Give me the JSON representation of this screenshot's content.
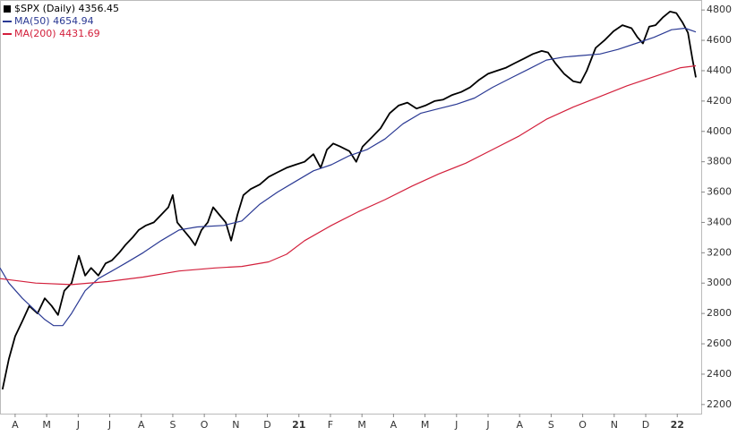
{
  "chart_data": {
    "type": "line",
    "xticks": [
      {
        "value": 0,
        "label": "A"
      },
      {
        "value": 1,
        "label": "M"
      },
      {
        "value": 2,
        "label": "J"
      },
      {
        "value": 3,
        "label": "J"
      },
      {
        "value": 4,
        "label": "A"
      },
      {
        "value": 5,
        "label": "S"
      },
      {
        "value": 6,
        "label": "O"
      },
      {
        "value": 7,
        "label": "N"
      },
      {
        "value": 8,
        "label": "D"
      },
      {
        "value": 9,
        "label": "21"
      },
      {
        "value": 10,
        "label": "F"
      },
      {
        "value": 11,
        "label": "M"
      },
      {
        "value": 12,
        "label": "A"
      },
      {
        "value": 13,
        "label": "M"
      },
      {
        "value": 14,
        "label": "J"
      },
      {
        "value": 15,
        "label": "J"
      },
      {
        "value": 16,
        "label": "A"
      },
      {
        "value": 17,
        "label": "S"
      },
      {
        "value": 18,
        "label": "O"
      },
      {
        "value": 19,
        "label": "N"
      },
      {
        "value": 20,
        "label": "D"
      },
      {
        "value": 21,
        "label": "22"
      }
    ],
    "xlim": [
      -0.48,
      21.76
    ],
    "ylim": [
      2140,
      4860
    ],
    "yticks": [
      2200,
      2400,
      2600,
      2800,
      3000,
      3200,
      3400,
      3600,
      3800,
      4000,
      4200,
      4400,
      4600,
      4800
    ],
    "grid": false,
    "legend": "top-left",
    "series": [
      {
        "name": "$SPX (Daily) 4356.45",
        "color": "#000000",
        "x": [
          -0.4,
          -0.2,
          0,
          0.23,
          0.45,
          0.71,
          0.94,
          1.16,
          1.36,
          1.56,
          1.79,
          2.02,
          2.22,
          2.41,
          2.64,
          2.87,
          3.07,
          3.3,
          3.49,
          3.72,
          3.92,
          4.15,
          4.4,
          4.63,
          4.86,
          5,
          5.14,
          5.34,
          5.54,
          5.71,
          5.91,
          6.11,
          6.28,
          6.48,
          6.68,
          6.85,
          7.05,
          7.24,
          7.47,
          7.76,
          8.04,
          8.32,
          8.61,
          8.89,
          9.18,
          9.46,
          9.69,
          9.89,
          10.09,
          10.31,
          10.6,
          10.82,
          11.02,
          11.31,
          11.59,
          11.88,
          12.16,
          12.44,
          12.73,
          13.01,
          13.3,
          13.58,
          13.86,
          14.15,
          14.43,
          14.72,
          15,
          15.28,
          15.57,
          15.85,
          16.14,
          16.42,
          16.7,
          16.9,
          17.13,
          17.41,
          17.7,
          17.93,
          18.13,
          18.41,
          18.69,
          18.98,
          19.26,
          19.55,
          19.74,
          19.91,
          20.11,
          20.31,
          20.54,
          20.77,
          20.97,
          21.16,
          21.34,
          21.48,
          21.59
        ],
        "values": [
          2300,
          2500,
          2650,
          2750,
          2850,
          2800,
          2900,
          2850,
          2790,
          2950,
          3000,
          3180,
          3050,
          3100,
          3050,
          3130,
          3150,
          3200,
          3250,
          3300,
          3350,
          3380,
          3400,
          3450,
          3500,
          3580,
          3400,
          3350,
          3300,
          3250,
          3350,
          3400,
          3500,
          3450,
          3400,
          3280,
          3450,
          3580,
          3620,
          3650,
          3700,
          3730,
          3760,
          3780,
          3800,
          3850,
          3760,
          3880,
          3920,
          3900,
          3870,
          3800,
          3900,
          3960,
          4020,
          4120,
          4170,
          4190,
          4150,
          4170,
          4200,
          4210,
          4240,
          4260,
          4290,
          4340,
          4380,
          4400,
          4420,
          4450,
          4480,
          4510,
          4530,
          4520,
          4450,
          4380,
          4330,
          4320,
          4400,
          4550,
          4600,
          4660,
          4700,
          4680,
          4620,
          4580,
          4690,
          4700,
          4750,
          4790,
          4780,
          4720,
          4650,
          4480,
          4356
        ]
      },
      {
        "name": "MA(50) 4654.94",
        "color": "#2b3a94",
        "x": [
          -0.48,
          -0.2,
          0.23,
          0.94,
          1.22,
          1.51,
          1.79,
          2.22,
          2.64,
          3.07,
          3.49,
          4.06,
          4.63,
          5.2,
          5.77,
          6.62,
          7.19,
          7.76,
          8.32,
          8.89,
          9.46,
          10.03,
          10.6,
          11.16,
          11.73,
          12.3,
          12.87,
          13.44,
          14.01,
          14.57,
          15.14,
          15.71,
          16.28,
          16.85,
          17.41,
          17.98,
          18.55,
          19.12,
          19.69,
          20.26,
          20.82,
          21.25,
          21.59
        ],
        "values": [
          3100,
          3000,
          2900,
          2760,
          2720,
          2720,
          2800,
          2950,
          3030,
          3080,
          3130,
          3200,
          3280,
          3350,
          3370,
          3380,
          3410,
          3520,
          3600,
          3670,
          3740,
          3780,
          3840,
          3880,
          3950,
          4050,
          4120,
          4150,
          4180,
          4220,
          4290,
          4350,
          4410,
          4470,
          4490,
          4500,
          4510,
          4540,
          4580,
          4620,
          4670,
          4680,
          4655
        ]
      },
      {
        "name": "MA(200) 4431.69",
        "color": "#d3203c",
        "x": [
          -0.48,
          0.65,
          1.79,
          2.93,
          4.06,
          5.2,
          6.34,
          7.19,
          8.04,
          8.61,
          9.18,
          10.03,
          10.88,
          11.73,
          12.59,
          13.44,
          14.29,
          15.14,
          15.99,
          16.85,
          17.7,
          18.55,
          19.4,
          20.26,
          21.11,
          21.59
        ],
        "values": [
          3030,
          3000,
          2990,
          3010,
          3040,
          3080,
          3100,
          3110,
          3140,
          3190,
          3280,
          3380,
          3470,
          3550,
          3640,
          3720,
          3790,
          3880,
          3970,
          4080,
          4160,
          4230,
          4300,
          4360,
          4420,
          4432
        ]
      }
    ]
  }
}
